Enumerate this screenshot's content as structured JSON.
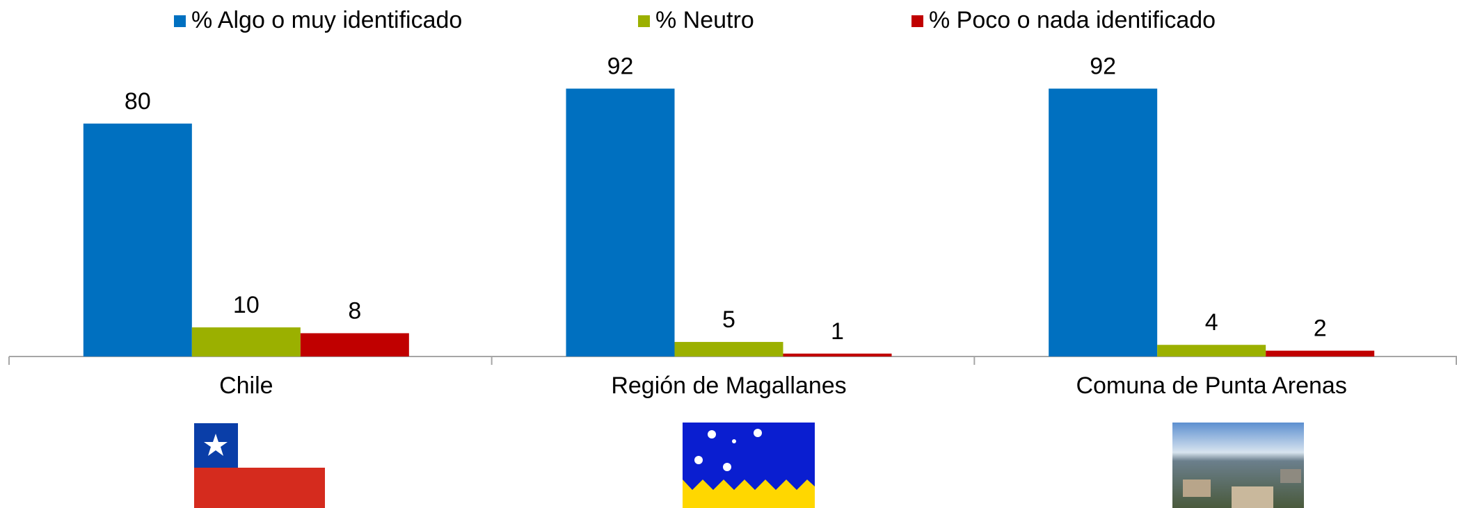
{
  "chart_data": {
    "type": "bar",
    "categories": [
      "Chile",
      "Región de Magallanes",
      "Comuna de Punta Arenas"
    ],
    "series": [
      {
        "name": "% Algo o muy identificado",
        "color": "#0070c0",
        "values": [
          80,
          92,
          92
        ]
      },
      {
        "name": "% Neutro",
        "color": "#9bb000",
        "values": [
          10,
          5,
          4
        ]
      },
      {
        "name": "% Poco o nada identificado",
        "color": "#c00000",
        "values": [
          8,
          1,
          2
        ]
      }
    ],
    "ylim": [
      0,
      100
    ],
    "legend": "top"
  }
}
